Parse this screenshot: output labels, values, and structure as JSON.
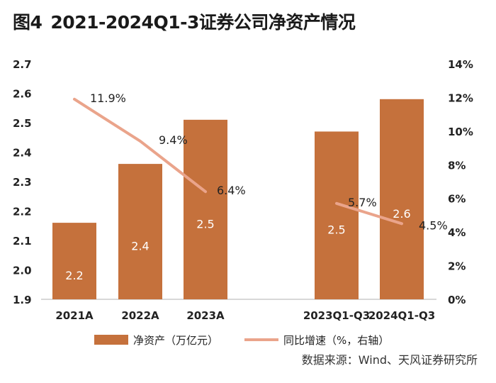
{
  "figure_label": "图4",
  "figure_title": "2021-2024Q1-3证券公司净资产情况",
  "source": "数据来源：Wind、天风证券研究所",
  "colors": {
    "bar": "#c5713c",
    "line": "#eaa48b",
    "bar_label": "#ffffff"
  },
  "chart_data": {
    "type": "bar",
    "title": "2021-2024Q1-3证券公司净资产情况",
    "categories": [
      "2021A",
      "2022A",
      "2023A",
      "2023Q1-Q3",
      "2024Q1-Q3"
    ],
    "series": [
      {
        "name": "净资产（万亿元）",
        "type": "bar",
        "axis": "left",
        "values": [
          2.16,
          2.36,
          2.51,
          2.47,
          2.58
        ],
        "labels": [
          "2.2",
          "2.4",
          "2.5",
          "2.5",
          "2.6"
        ]
      },
      {
        "name": "同比增速（%，右轴）",
        "type": "line",
        "axis": "right",
        "segments": [
          {
            "categories": [
              "2021A",
              "2022A",
              "2023A"
            ],
            "values": [
              11.9,
              9.4,
              6.4
            ]
          },
          {
            "categories": [
              "2023Q1-Q3",
              "2024Q1-Q3"
            ],
            "values": [
              5.7,
              4.5
            ]
          }
        ],
        "labels": [
          "11.9%",
          "9.4%",
          "6.4%",
          "5.7%",
          "4.5%"
        ]
      }
    ],
    "y_left": {
      "ylim": [
        1.9,
        2.7
      ],
      "ticks": [
        "1.9",
        "2.0",
        "2.1",
        "2.2",
        "2.3",
        "2.4",
        "2.5",
        "2.6",
        "2.7"
      ]
    },
    "y_right": {
      "ylim": [
        0,
        14
      ],
      "ticks": [
        "0%",
        "2%",
        "4%",
        "6%",
        "8%",
        "10%",
        "12%",
        "14%"
      ]
    },
    "grid": false,
    "legend": {
      "position": "bottom",
      "entries": [
        "净资产（万亿元）",
        "同比增速（%，右轴）"
      ]
    }
  }
}
